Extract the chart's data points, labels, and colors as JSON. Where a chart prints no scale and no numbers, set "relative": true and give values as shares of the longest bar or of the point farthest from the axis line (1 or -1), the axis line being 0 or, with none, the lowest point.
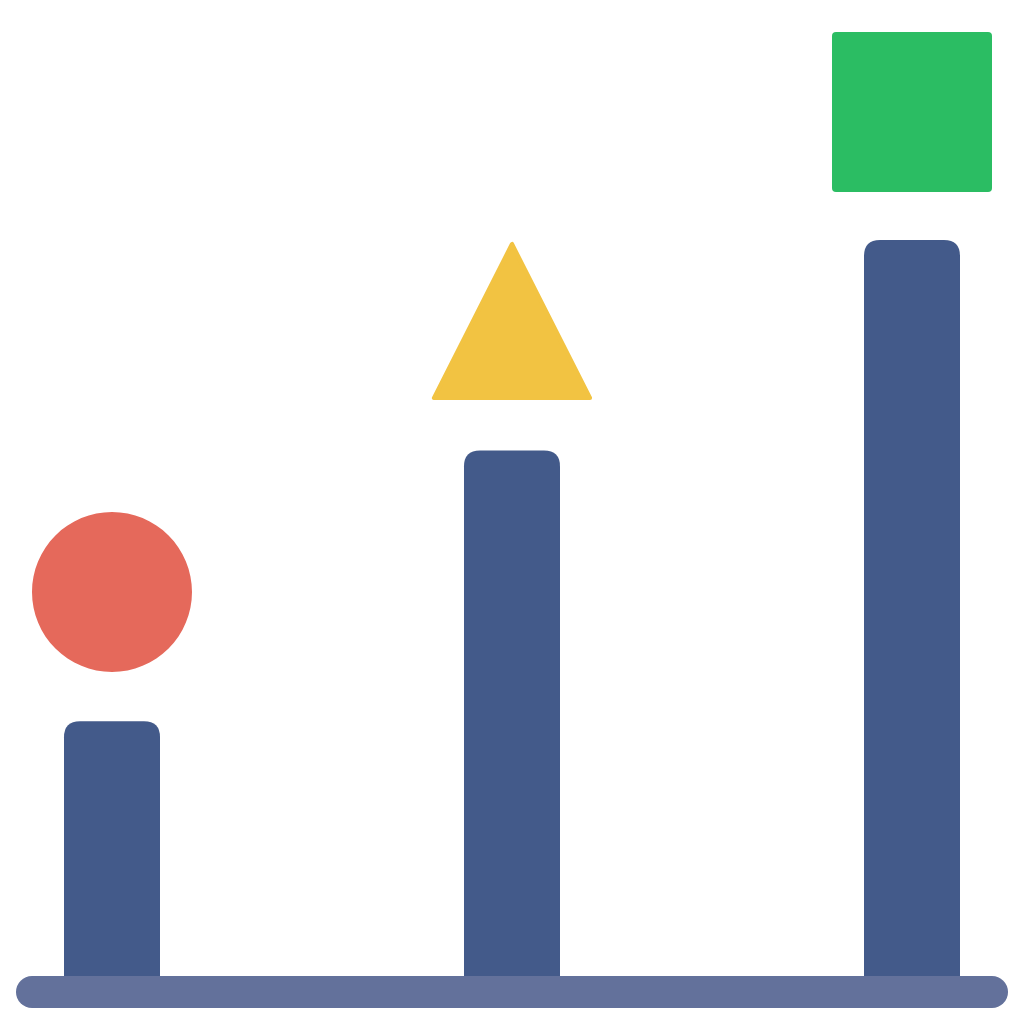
{
  "chart_data": {
    "type": "bar",
    "relative": true,
    "categories": [
      null,
      null,
      null
    ],
    "values": [
      0.36,
      0.72,
      1
    ],
    "color": "#435a8a"
  }
}
